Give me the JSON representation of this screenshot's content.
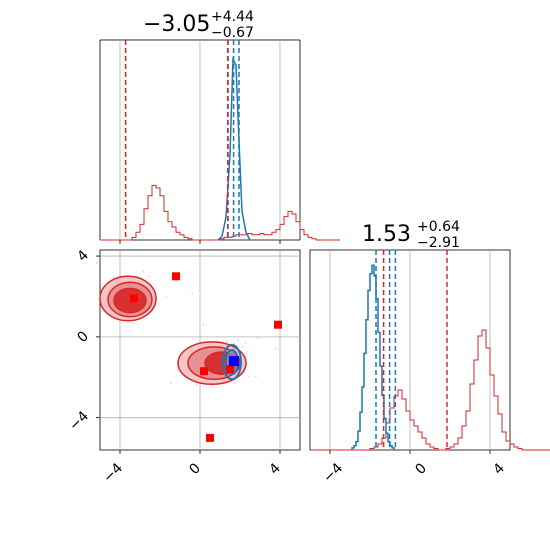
{
  "chart_data": {
    "type": "corner",
    "grid": true,
    "colors": {
      "sample_a": "#1f77b4",
      "sample_b": "#d62728",
      "markers": "#ff0000",
      "marker_highlight": "#0000ff"
    },
    "x_ticks": [
      "−4",
      "0",
      "4"
    ],
    "y_ticks": [
      "4",
      "0",
      "−4"
    ],
    "xlim": [
      -5.0,
      5.0
    ],
    "ylim_2d": [
      -5.6,
      4.3
    ],
    "param_1": {
      "title": {
        "main": "−3.05",
        "plus": "+4.44",
        "minus": "−0.67"
      },
      "hist_b": {
        "bin_start": -5.0,
        "bin_width": 0.2,
        "counts": [
          0,
          0,
          0,
          0,
          0,
          0,
          0,
          0,
          0.01,
          0.03,
          0.06,
          0.12,
          0.17,
          0.21,
          0.2,
          0.17,
          0.11,
          0.07,
          0.05,
          0.03,
          0.02,
          0.01,
          0.005,
          0,
          0,
          0,
          0,
          0,
          0,
          0,
          0.005,
          0.01,
          0.01,
          0.015,
          0.02,
          0.02,
          0.02,
          0.025,
          0.02,
          0.02,
          0.025,
          0.02,
          0.02,
          0.03,
          0.04,
          0.06,
          0.09,
          0.11,
          0.1,
          0.07,
          0.04,
          0.02,
          0.01,
          0.005,
          0,
          0,
          0,
          0,
          0,
          0
        ]
      },
      "hist_a": {
        "x": [
          0.9,
          1.1,
          1.3,
          1.5,
          1.65,
          1.8,
          1.95,
          2.1,
          2.3,
          2.5
        ],
        "counts": [
          0,
          0.02,
          0.12,
          0.45,
          0.95,
          0.92,
          0.52,
          0.15,
          0.04,
          0
        ]
      },
      "quantiles_a": [
        1.4,
        1.68,
        1.95
      ],
      "quantiles_b": [
        -3.72,
        1.39
      ]
    },
    "param_2": {
      "title": {
        "main": "1.53",
        "plus": "+0.64",
        "minus": "−2.91"
      },
      "hist_b": {
        "bin_start": -5.0,
        "bin_width": 0.2,
        "counts": [
          0,
          0,
          0,
          0,
          0,
          0,
          0,
          0,
          0,
          0,
          0,
          0,
          0,
          0,
          0,
          0.005,
          0.01,
          0.02,
          0.04,
          0.09,
          0.14,
          0.18,
          0.2,
          0.17,
          0.13,
          0.1,
          0.08,
          0.06,
          0.04,
          0.02,
          0.01,
          0.005,
          0,
          0,
          0.005,
          0.01,
          0.02,
          0.04,
          0.08,
          0.13,
          0.22,
          0.3,
          0.38,
          0.4,
          0.34,
          0.25,
          0.18,
          0.12,
          0.06,
          0.03,
          0.02,
          0.01,
          0.005,
          0,
          0,
          0,
          0,
          0,
          0,
          0
        ]
      },
      "hist_a": {
        "bin_start": -2.9,
        "bin_width": 0.1,
        "counts": [
          0.01,
          0.02,
          0.04,
          0.09,
          0.18,
          0.3,
          0.46,
          0.62,
          0.76,
          0.84,
          0.88,
          0.83,
          0.72,
          0.56,
          0.4,
          0.26,
          0.15,
          0.08,
          0.04,
          0.02,
          0.01
        ]
      },
      "quantiles_a": [
        -1.7,
        -1.02,
        -0.73
      ],
      "quantiles_b": [
        -1.32,
        1.85
      ]
    },
    "joint": {
      "contours_b": [
        {
          "cx": -3.6,
          "cy": 1.9,
          "rx": 1.4,
          "ry": 1.1
        },
        {
          "cx": -3.5,
          "cy": 1.85,
          "rx": 1.1,
          "ry": 0.85
        },
        {
          "cx": -3.5,
          "cy": 1.8,
          "rx": 0.8,
          "ry": 0.6
        },
        {
          "cx": 0.6,
          "cy": -1.3,
          "rx": 1.7,
          "ry": 1.05
        },
        {
          "cx": 0.7,
          "cy": -1.3,
          "rx": 1.3,
          "ry": 0.8
        },
        {
          "cx": 1.1,
          "cy": -1.3,
          "rx": 0.85,
          "ry": 0.55
        }
      ],
      "contours_a": [
        {
          "cx": 1.6,
          "cy": -1.25,
          "rx": 0.45,
          "ry": 0.85
        },
        {
          "cx": 1.6,
          "cy": -1.25,
          "rx": 0.3,
          "ry": 0.6
        }
      ],
      "markers": [
        {
          "x": -3.3,
          "y": 1.9
        },
        {
          "x": -1.2,
          "y": 3.0
        },
        {
          "x": 3.9,
          "y": 0.6
        },
        {
          "x": 0.2,
          "y": -1.7
        },
        {
          "x": 1.5,
          "y": -1.6
        },
        {
          "x": 0.5,
          "y": -5.0
        }
      ],
      "marker_highlight": {
        "x": 1.7,
        "y": -1.2
      }
    }
  }
}
